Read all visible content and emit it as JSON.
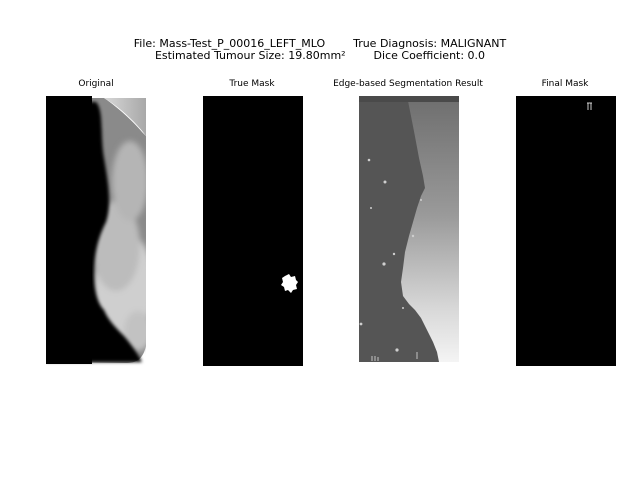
{
  "figure": {
    "header_line1": "File: Mass-Test_P_00016_LEFT_MLO        True Diagnosis: MALIGNANT",
    "header_line2": "Estimated Tumour Size: 19.80mm²        Dice Coefficient: 0.0"
  },
  "panels": [
    {
      "title": "Original"
    },
    {
      "title": "True Mask"
    },
    {
      "title": "Edge-based Segmentation Result"
    },
    {
      "title": "Final Mask"
    }
  ]
}
